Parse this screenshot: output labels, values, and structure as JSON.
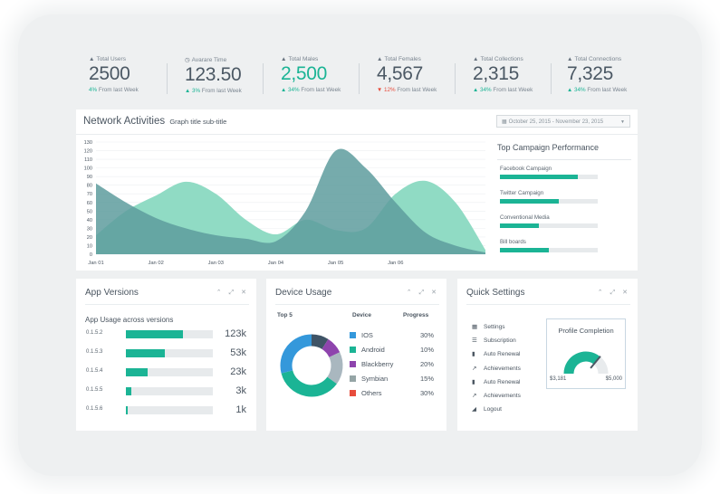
{
  "stats": [
    {
      "icon": "user-icon",
      "label": "Total Users",
      "value": "2500",
      "change": "4%",
      "change_dir": "up",
      "suffix": "From last Week",
      "highlight": false
    },
    {
      "icon": "clock-icon",
      "label": "Avarare Time",
      "value": "123.50",
      "change": "3%",
      "change_dir": "up",
      "suffix": "From last Week",
      "highlight": false
    },
    {
      "icon": "user-icon",
      "label": "Total Males",
      "value": "2,500",
      "change": "34%",
      "change_dir": "up",
      "suffix": "From last Week",
      "highlight": true
    },
    {
      "icon": "user-icon",
      "label": "Total Females",
      "value": "4,567",
      "change": "12%",
      "change_dir": "down",
      "suffix": "From last Week",
      "highlight": false
    },
    {
      "icon": "user-icon",
      "label": "Total Collections",
      "value": "2,315",
      "change": "34%",
      "change_dir": "up",
      "suffix": "From last Week",
      "highlight": false
    },
    {
      "icon": "user-icon",
      "label": "Total Connections",
      "value": "7,325",
      "change": "34%",
      "change_dir": "up",
      "suffix": "From last Week",
      "highlight": false
    }
  ],
  "network": {
    "title": "Network Activities",
    "subtitle": "Graph title sub-title",
    "date_range": "October 25, 2015 - November 23, 2015",
    "calendar_icon": "calendar-icon",
    "caret_icon": "caret-down-icon"
  },
  "chart_data": {
    "type": "area",
    "title": "Network Activities",
    "subtitle": "Graph title sub-title",
    "categories": [
      "Jan 01",
      "Jan 02",
      "Jan 03",
      "Jan 04",
      "Jan 05",
      "Jan 06"
    ],
    "x": [
      0,
      0.5,
      1,
      1.5,
      2,
      2.5,
      3,
      3.5,
      4,
      4.5,
      5,
      5.5,
      6,
      6.5
    ],
    "y_ticks": [
      0,
      10,
      20,
      30,
      40,
      50,
      60,
      70,
      80,
      90,
      100,
      110,
      120,
      130
    ],
    "ylim": [
      0,
      130
    ],
    "grid": true,
    "series": [
      {
        "color": "#8ad9c1",
        "values": [
          22,
          50,
          68,
          84,
          70,
          40,
          23,
          40,
          28,
          30,
          70,
          85,
          60,
          5
        ]
      },
      {
        "color": "#5e9c9e",
        "values": [
          82,
          60,
          42,
          30,
          22,
          18,
          15,
          50,
          120,
          100,
          60,
          25,
          10,
          2
        ]
      }
    ]
  },
  "campaigns": {
    "title": "Top Campaign Performance",
    "items": [
      {
        "label": "Facebook Campaign",
        "progress": 0.8
      },
      {
        "label": "Twitter Campaign",
        "progress": 0.6
      },
      {
        "label": "Conventional Media",
        "progress": 0.4
      },
      {
        "label": "Bill boards",
        "progress": 0.5
      }
    ]
  },
  "app_versions": {
    "title": "App Versions",
    "controls": "⌃ ⤢ ✕",
    "subtitle": "App Usage across versions",
    "rows": [
      {
        "version": "0.1.5.2",
        "amount": "123k",
        "progress": 0.66
      },
      {
        "version": "0.1.5.3",
        "amount": "53k",
        "progress": 0.45
      },
      {
        "version": "0.1.5.4",
        "amount": "23k",
        "progress": 0.25
      },
      {
        "version": "0.1.5.5",
        "amount": "3k",
        "progress": 0.06
      },
      {
        "version": "0.1.5.6",
        "amount": "1k",
        "progress": 0.02
      }
    ]
  },
  "device_usage": {
    "title": "Device Usage",
    "controls": "⌃ ⤢ ✕",
    "headers": {
      "top": "Top 5",
      "device": "Device",
      "progress": "Progress"
    },
    "rows": [
      {
        "name": "IOS",
        "percent": "30%",
        "color": "#3498db",
        "value": 30
      },
      {
        "name": "Android",
        "percent": "10%",
        "color": "#1bb495",
        "value": 10
      },
      {
        "name": "Blackberry",
        "percent": "20%",
        "color": "#8e44ad",
        "value": 20
      },
      {
        "name": "Symbian",
        "percent": "15%",
        "color": "#95a5a6",
        "value": 15
      },
      {
        "name": "Others",
        "percent": "30%",
        "color": "#e74c3c",
        "value": 30
      }
    ],
    "donut_slices": [
      {
        "color": "#3f5466",
        "value": 9
      },
      {
        "color": "#8e44ad",
        "value": 9
      },
      {
        "color": "#a9b7bf",
        "value": 17
      },
      {
        "color": "#1bb495",
        "value": 36
      },
      {
        "color": "#3498db",
        "value": 29
      }
    ]
  },
  "quick_settings": {
    "title": "Quick Settings",
    "controls": "⌃ ⤢ ✕",
    "items": [
      {
        "icon": "calendar-icon",
        "label": "Settings"
      },
      {
        "icon": "bars-icon",
        "label": "Subscription"
      },
      {
        "icon": "bar-chart-icon",
        "label": "Auto Renewal"
      },
      {
        "icon": "line-chart-icon",
        "label": "Achievements"
      },
      {
        "icon": "bar-chart-icon",
        "label": "Auto Renewal"
      },
      {
        "icon": "line-chart-icon",
        "label": "Achievements"
      },
      {
        "icon": "area-chart-icon",
        "label": "Logout"
      }
    ],
    "profile": {
      "title": "Profile Completion",
      "min": "$3,181",
      "max": "$5,000",
      "level": 0.72
    }
  },
  "colors": {
    "accent": "#1bb495",
    "teal_dark": "#5e9c9e",
    "teal_light": "#8ad9c1",
    "danger": "#e74c3c"
  }
}
